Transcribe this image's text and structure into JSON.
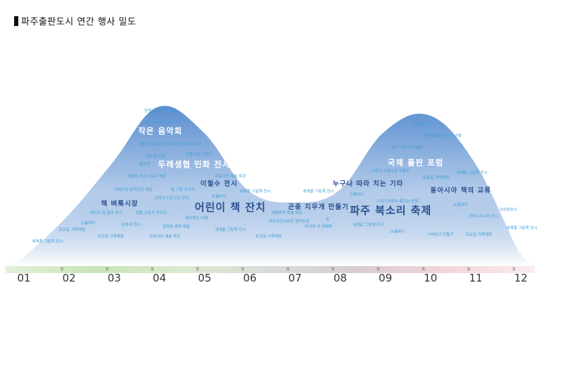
{
  "title": "파주출판도시 연간 행사 밀도",
  "chart_data": {
    "type": "area",
    "title": "파주출판도시 연간 행사 밀도",
    "xlabel": "",
    "ylabel": "",
    "months": [
      "01",
      "02",
      "03",
      "04",
      "05",
      "06",
      "07",
      "08",
      "09",
      "10",
      "11",
      "12"
    ],
    "month_suffix": "월",
    "density": [
      0.05,
      0.3,
      0.62,
      0.95,
      0.8,
      0.45,
      0.38,
      0.45,
      0.8,
      0.9,
      0.62,
      0.08
    ],
    "colors": {
      "area_top": "#5b8fd0",
      "area_bottom": "#ffffff",
      "label_small": "#3b9ed6",
      "label_large": "#2d4f8f",
      "band": [
        "#e4f0da",
        "#c9e4b8",
        "#dbe9d0",
        "#d8dcd8",
        "#d9ccd1",
        "#f2d6da",
        "#fbecee"
      ]
    },
    "events": [
      {
        "text": "잠뱃 어린이 책 소풍",
        "month": 4.05,
        "level": 0.92,
        "size": "xs"
      },
      {
        "text": "파주 나비나라 체험",
        "month": 4.0,
        "level": 0.85,
        "size": "xs"
      },
      {
        "text": "작은 음악회",
        "month": 4.05,
        "level": 0.79,
        "size": "l"
      },
      {
        "text": "헤이즈 걸 힐마 전시",
        "month": 3.95,
        "level": 0.72,
        "size": "xs"
      },
      {
        "text": "신기한 세상 이야기",
        "month": 4.6,
        "level": 0.72,
        "size": "xs"
      },
      {
        "text": "곤충가방 만들기",
        "month": 4.9,
        "level": 0.66,
        "size": "xs"
      },
      {
        "text": "비누칠 수업",
        "month": 3.95,
        "level": 0.65,
        "size": "xs"
      },
      {
        "text": "두레생협 민화 전시",
        "month": 4.8,
        "level": 0.59,
        "size": "l"
      },
      {
        "text": "음악가",
        "month": 3.7,
        "level": 0.6,
        "size": "xs"
      },
      {
        "text": "어울림 리뷰 스토리 체험",
        "month": 3.75,
        "level": 0.53,
        "size": "xs"
      },
      {
        "text": "무료사진 예술 특강",
        "month": 5.6,
        "level": 0.53,
        "size": "xs"
      },
      {
        "text": "이철수 전시",
        "month": 5.35,
        "level": 0.48,
        "size": "m"
      },
      {
        "text": "서예공길 문화공간 체험",
        "month": 3.45,
        "level": 0.45,
        "size": "xs"
      },
      {
        "text": "탐 그림 이야기",
        "month": 4.55,
        "level": 0.45,
        "size": "xs"
      },
      {
        "text": "세계끝 그림책 전시",
        "month": 6.15,
        "level": 0.44,
        "size": "xs"
      },
      {
        "text": "눈뭍바다",
        "month": 5.35,
        "level": 0.41,
        "size": "xs"
      },
      {
        "text": "김영서 인문고전 강연",
        "month": 4.3,
        "level": 0.4,
        "size": "xs"
      },
      {
        "text": "책 벼룩시장",
        "month": 3.15,
        "level": 0.36,
        "size": "m"
      },
      {
        "text": "어린이 책 잔치",
        "month": 5.6,
        "level": 0.33,
        "size": "xl"
      },
      {
        "text": "헤이즈 걸 힐마 전시",
        "month": 2.85,
        "level": 0.31,
        "size": "xs"
      },
      {
        "text": "한밭 스토리 하우스",
        "month": 3.85,
        "level": 0.31,
        "size": "xs"
      },
      {
        "text": "여름방학 특별 체험",
        "month": 6.85,
        "level": 0.31,
        "size": "xs"
      },
      {
        "text": "에가피스 이해",
        "month": 4.85,
        "level": 0.28,
        "size": "xs"
      },
      {
        "text": "눈뭍바다",
        "month": 2.45,
        "level": 0.25,
        "size": "xs"
      },
      {
        "text": "김영사 전시",
        "month": 3.4,
        "level": 0.24,
        "size": "xs"
      },
      {
        "text": "토요일 가족체험",
        "month": 2.1,
        "level": 0.21,
        "size": "xs"
      },
      {
        "text": "김희선 생태 체험",
        "month": 4.4,
        "level": 0.23,
        "size": "xs"
      },
      {
        "text": "세계끝 그림책 전시",
        "month": 5.6,
        "level": 0.21,
        "size": "xs"
      },
      {
        "text": "파주사인200인 원탁토론",
        "month": 6.9,
        "level": 0.26,
        "size": "xs"
      },
      {
        "text": "토요일 가족체험",
        "month": 2.95,
        "level": 0.17,
        "size": "xs"
      },
      {
        "text": "무료사진 예술 특강",
        "month": 4.15,
        "level": 0.17,
        "size": "xs"
      },
      {
        "text": "토요일 가족체험",
        "month": 6.45,
        "level": 0.17,
        "size": "xs"
      },
      {
        "text": "세계결 그림책 전시",
        "month": 1.55,
        "level": 0.14,
        "size": "xs"
      },
      {
        "text": "국제 출판 포럼",
        "month": 9.7,
        "level": 0.6,
        "size": "l"
      },
      {
        "text": "눈뭍바다",
        "month": 9.8,
        "level": 0.84,
        "size": "xs"
      },
      {
        "text": "자연재료로 만드는 곤충",
        "month": 10.3,
        "level": 0.77,
        "size": "xs"
      },
      {
        "text": "파주 나비나라 체험",
        "month": 9.5,
        "level": 0.7,
        "size": "xs"
      },
      {
        "text": "나만의 곤충도감 만들기",
        "month": 9.15,
        "level": 0.56,
        "size": "xs"
      },
      {
        "text": "세계끝 그림책 전시",
        "month": 10.95,
        "level": 0.55,
        "size": "xs"
      },
      {
        "text": "토요일 가족체험",
        "month": 10.15,
        "level": 0.52,
        "size": "xs"
      },
      {
        "text": "누구나 따라 치는 기타",
        "month": 8.65,
        "level": 0.48,
        "size": "m"
      },
      {
        "text": "동아시아 책의 교류",
        "month": 10.7,
        "level": 0.44,
        "size": "m"
      },
      {
        "text": "세계끝 그림책 전시",
        "month": 7.55,
        "level": 0.44,
        "size": "xs"
      },
      {
        "text": "눈뭍바다",
        "month": 8.4,
        "level": 0.42,
        "size": "xs"
      },
      {
        "text": "나비나라에서 즐기는 방학",
        "month": 9.3,
        "level": 0.38,
        "size": "xs"
      },
      {
        "text": "곤충 지우개 만들기",
        "month": 7.55,
        "level": 0.34,
        "size": "m"
      },
      {
        "text": "파주 북소리 축제",
        "month": 9.15,
        "level": 0.31,
        "size": "xl"
      },
      {
        "text": "눈뭍바다",
        "month": 10.7,
        "level": 0.36,
        "size": "xs"
      },
      {
        "text": "이상현전시",
        "month": 11.75,
        "level": 0.33,
        "size": "xs"
      },
      {
        "text": "멋",
        "month": 7.75,
        "level": 0.27,
        "size": "xs"
      },
      {
        "text": "크루누무나리 전시",
        "month": 11.2,
        "level": 0.29,
        "size": "xs"
      },
      {
        "text": "세계끝 그림책 전시",
        "month": 8.65,
        "level": 0.24,
        "size": "xs"
      },
      {
        "text": "버섯과 새 세밀화",
        "month": 7.55,
        "level": 0.23,
        "size": "xs"
      },
      {
        "text": "눈뭍바다",
        "month": 9.3,
        "level": 0.2,
        "size": "xs"
      },
      {
        "text": "나비링크 만들기",
        "month": 10.25,
        "level": 0.18,
        "size": "xs"
      },
      {
        "text": "토요일 가족체험",
        "month": 11.1,
        "level": 0.18,
        "size": "xs"
      },
      {
        "text": "세계결 그림책 전시",
        "month": 12.05,
        "level": 0.22,
        "size": "xs"
      }
    ]
  }
}
